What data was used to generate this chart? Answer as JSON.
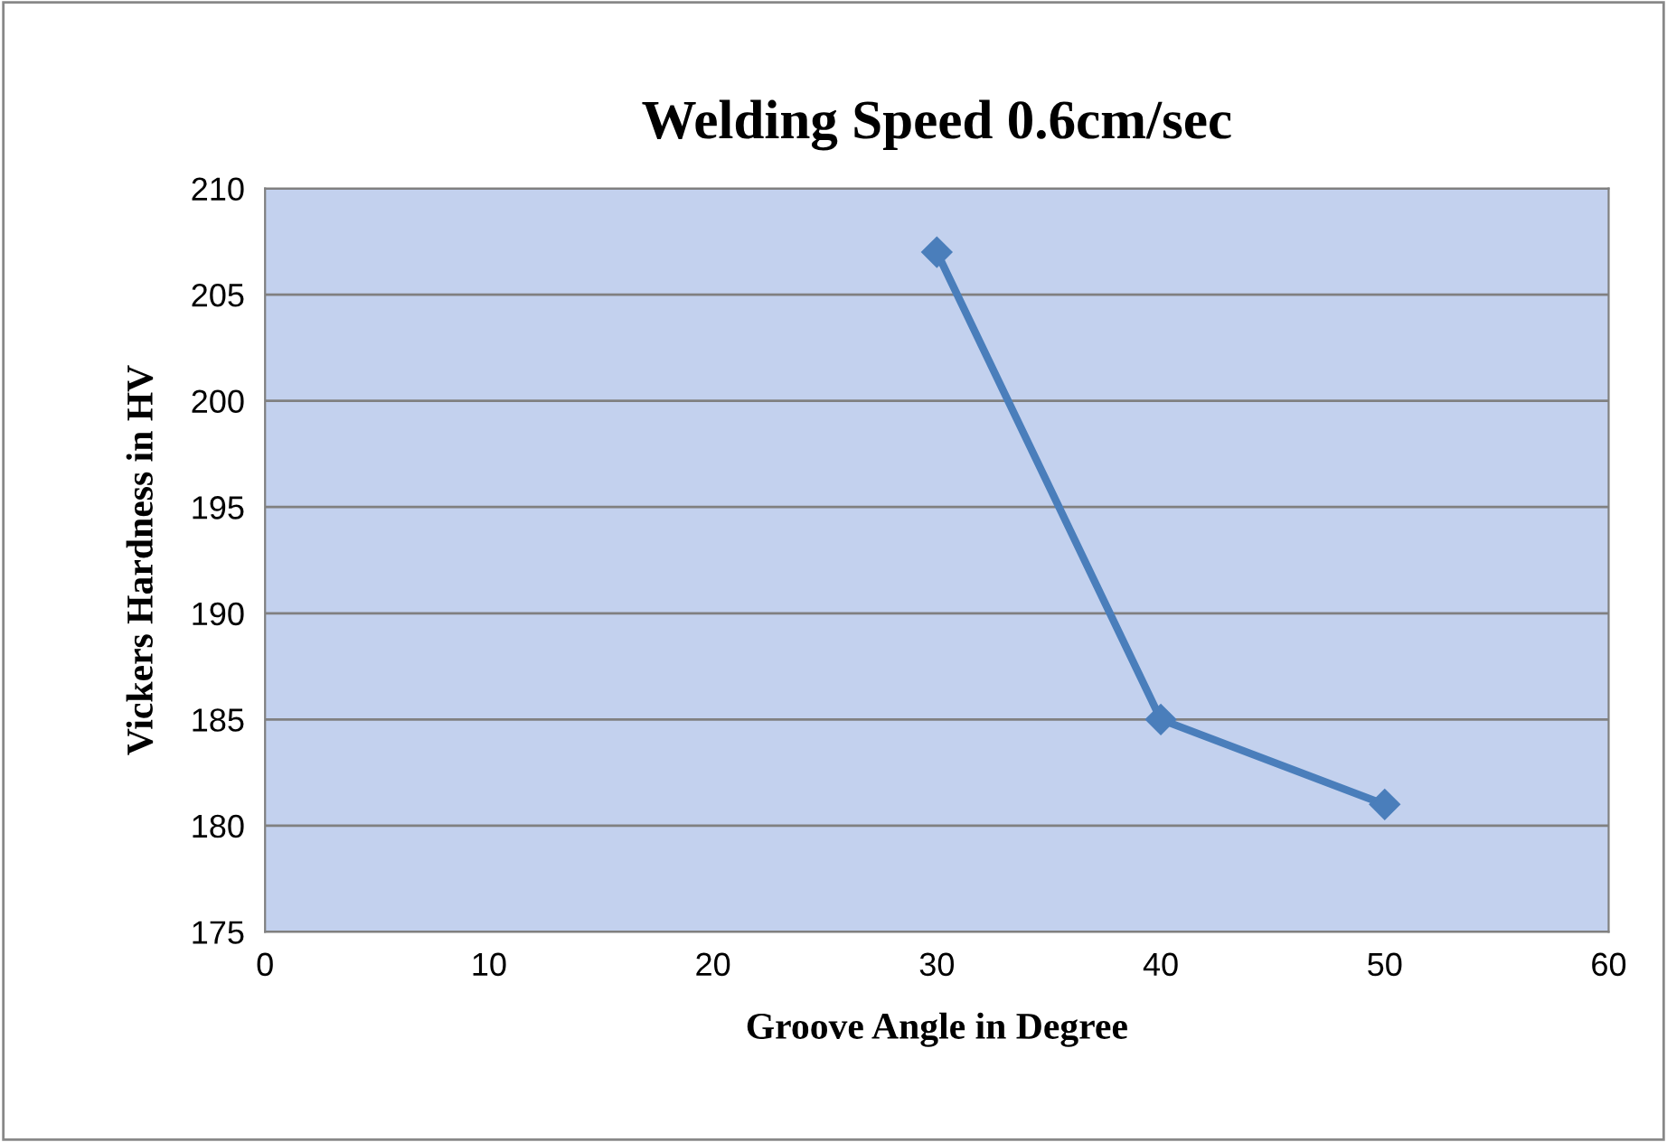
{
  "chart_data": {
    "type": "line",
    "title": "Welding Speed 0.6cm/sec",
    "xlabel": "Groove Angle in Degree",
    "ylabel": "Vickers Hardness in HV",
    "x": [
      30,
      40,
      50
    ],
    "series": [
      {
        "color": "#4a7ebb",
        "values": [
          207,
          185,
          181
        ]
      }
    ],
    "xlim": [
      0,
      60
    ],
    "xticks": [
      0,
      10,
      20,
      30,
      40,
      50,
      60
    ],
    "ylim": [
      175,
      210
    ],
    "yticks": [
      175,
      180,
      185,
      190,
      195,
      200,
      205,
      210
    ],
    "grid": "y",
    "legend": false,
    "marker": "diamond",
    "line_style": "solid"
  }
}
